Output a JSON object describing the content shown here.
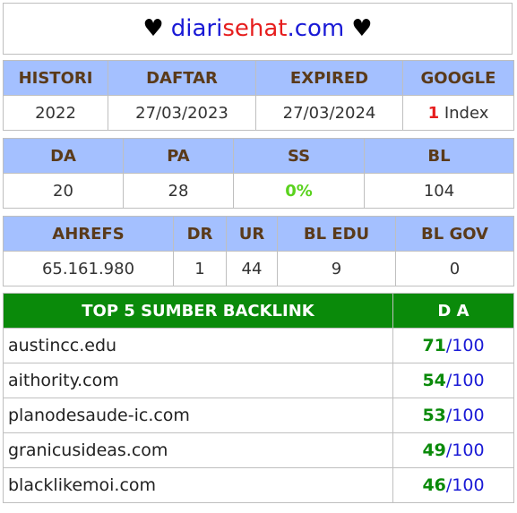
{
  "header": {
    "heart_left": "♥",
    "domain_part1": "diari",
    "domain_part2": "sehat",
    "domain_part3": ".com",
    "heart_right": "♥"
  },
  "table1": {
    "headers": [
      "HISTORI",
      "DAFTAR",
      "EXPIRED",
      "GOOGLE"
    ],
    "values": [
      "2022",
      "27/03/2023",
      "27/03/2024"
    ],
    "google_count": "1",
    "google_label": "Index"
  },
  "table2": {
    "headers": [
      "DA",
      "PA",
      "SS",
      "BL"
    ],
    "values": [
      "20",
      "28",
      "0%",
      "104"
    ]
  },
  "table3": {
    "headers": [
      "AHREFS",
      "DR",
      "UR",
      "BL EDU",
      "BL GOV"
    ],
    "values": [
      "65.161.980",
      "1",
      "44",
      "9",
      "0"
    ]
  },
  "backlinks": {
    "header_source": "TOP 5 SUMBER BACKLINK",
    "header_da": "D A",
    "max": "/100",
    "rows": [
      {
        "site": "austincc.edu",
        "da": "71"
      },
      {
        "site": "aithority.com",
        "da": "54"
      },
      {
        "site": "planodesaude-ic.com",
        "da": "53"
      },
      {
        "site": "granicusideas.com",
        "da": "49"
      },
      {
        "site": "blacklikemoi.com",
        "da": "46"
      }
    ]
  },
  "colors": {
    "header_blue": "#a4c0ff",
    "header_green": "#0a8a0a",
    "domain_blue": "#1a1ad6",
    "domain_red": "#e61e1e"
  }
}
